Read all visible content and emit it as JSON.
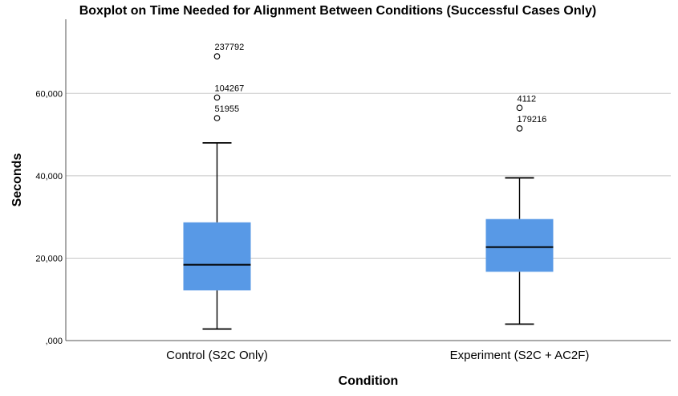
{
  "chart_data": {
    "type": "boxplot",
    "title": "Boxplot on Time Needed for Alignment Between Conditions (Successful Cases Only)",
    "xlabel": "Condition",
    "ylabel": "Seconds",
    "ylim": [
      0,
      78000
    ],
    "yticks": [
      0,
      20000,
      40000,
      60000
    ],
    "ytick_labels": [
      ",000",
      "20,000",
      "40,000",
      "60,000"
    ],
    "grid": true,
    "box_color": "#5899e6",
    "categories": [
      "Control (S2C Only)",
      "Experiment (S2C + AC2F)"
    ],
    "boxes": [
      {
        "category": "Control (S2C Only)",
        "whisker_low": 2800,
        "q1": 12200,
        "median": 18400,
        "q3": 28700,
        "whisker_high": 48000,
        "outliers": [
          {
            "label": "237792",
            "value": 69000
          },
          {
            "label": "104267",
            "value": 59000
          },
          {
            "label": "51955",
            "value": 54000
          }
        ]
      },
      {
        "category": "Experiment (S2C + AC2F)",
        "whisker_low": 4000,
        "q1": 16700,
        "median": 22700,
        "q3": 29500,
        "whisker_high": 39500,
        "outliers": [
          {
            "label": "4112",
            "value": 56500
          },
          {
            "label": "179216",
            "value": 51500
          }
        ]
      }
    ]
  }
}
